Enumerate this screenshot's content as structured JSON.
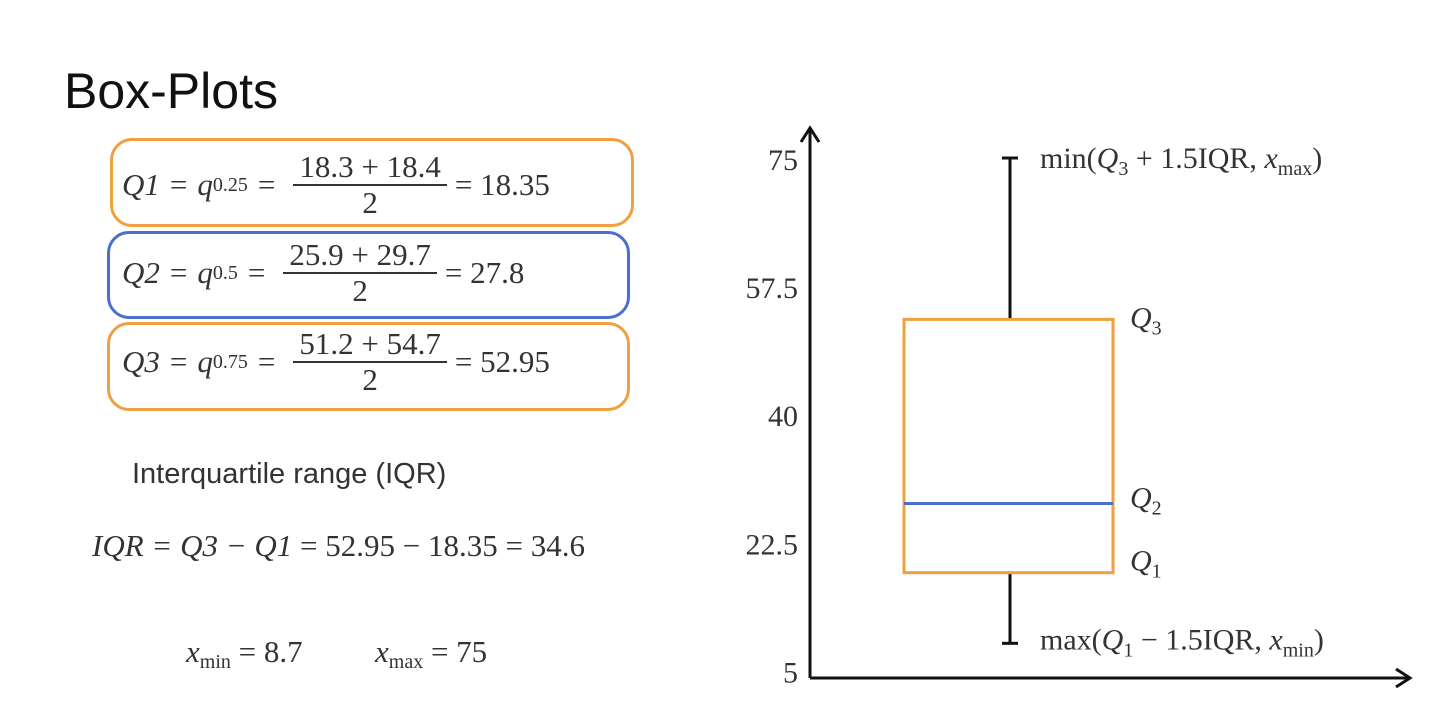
{
  "slide": {
    "title": "Box-Plots",
    "equations": [
      {
        "lhs": "Q1",
        "q": "q",
        "q_sub": "0.25",
        "numerator": "18.3 + 18.4",
        "denominator": "2",
        "result": "= 18.35",
        "color": "#F0A040"
      },
      {
        "lhs": "Q2",
        "q": "q",
        "q_sub": "0.5",
        "numerator": "25.9 + 29.7",
        "denominator": "2",
        "result": "= 27.8",
        "color": "#4A6FD0"
      },
      {
        "lhs": "Q3",
        "q": "q",
        "q_sub": "0.75",
        "numerator": "51.2 + 54.7",
        "denominator": "2",
        "result": "= 52.95",
        "color": "#F0A040"
      }
    ],
    "eq_sign": "=",
    "iqr_label": "Interquartile range (IQR)",
    "iqr_formula_lhs": "IQR = Q3 − Q1",
    "iqr_formula_rhs": "= 52.95 − 18.35 = 34.6",
    "xmin": {
      "var": "x",
      "sub": "min",
      "value": "= 8.7"
    },
    "xmax": {
      "var": "x",
      "sub": "max",
      "value": "= 75"
    }
  },
  "chart_data": {
    "type": "box",
    "y_ticks": [
      "5",
      "22.5",
      "40",
      "57.5",
      "75"
    ],
    "y_tick_values": [
      5,
      22.5,
      40,
      57.5,
      75
    ],
    "ylim": [
      5,
      75
    ],
    "grid": false,
    "box": {
      "whisker_low": 8.7,
      "q1": 18.35,
      "median": 27.8,
      "q3": 52.95,
      "whisker_high": 75
    },
    "colors": {
      "box": "#F0A040",
      "median": "#4A6FD0",
      "whisker": "#111111",
      "axis": "#111111"
    },
    "labels": {
      "q3": {
        "base": "Q",
        "sub": "3"
      },
      "q2": {
        "base": "Q",
        "sub": "2"
      },
      "q1": {
        "base": "Q",
        "sub": "1"
      },
      "upper_whisker": {
        "pre": "min(",
        "q": "Q",
        "q_sub": "3",
        "mid": " + 1.5IQR, ",
        "x": "x",
        "x_sub": "max",
        "post": ")"
      },
      "lower_whisker": {
        "pre": "max(",
        "q": "Q",
        "q_sub": "1",
        "mid": " − 1.5IQR, ",
        "x": "x",
        "x_sub": "min",
        "post": ")"
      }
    }
  }
}
